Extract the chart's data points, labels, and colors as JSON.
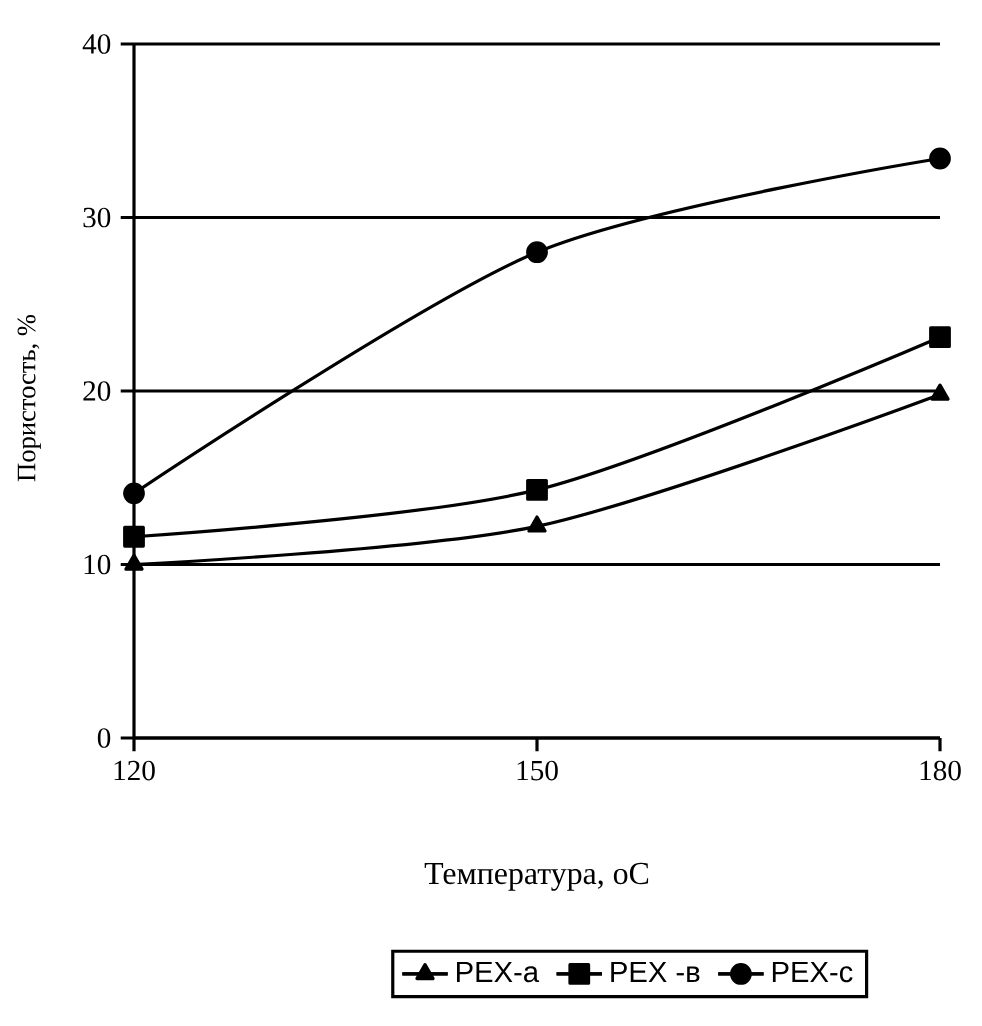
{
  "chart_data": {
    "type": "line",
    "xlabel": "Температура, оС",
    "ylabel": "Пористость, %",
    "x": [
      120,
      150,
      180
    ],
    "series": [
      {
        "name": "PEX-a",
        "color": "#000000",
        "marker": "triangle",
        "values": [
          10,
          12.2,
          19.8
        ]
      },
      {
        "name": "PEX -в",
        "color": "#000000",
        "marker": "square",
        "values": [
          11.6,
          14.3,
          23.1
        ]
      },
      {
        "name": "PEX-c",
        "color": "#000000",
        "marker": "circle",
        "values": [
          14.1,
          28,
          33.4
        ]
      }
    ],
    "xlim": [
      120,
      180
    ],
    "xticks": [
      120,
      150,
      180
    ],
    "ylim": [
      0,
      40
    ],
    "yticks": [
      0,
      10,
      20,
      30,
      40
    ],
    "grid": "y",
    "legend": "bottom",
    "line_style": "solid"
  }
}
